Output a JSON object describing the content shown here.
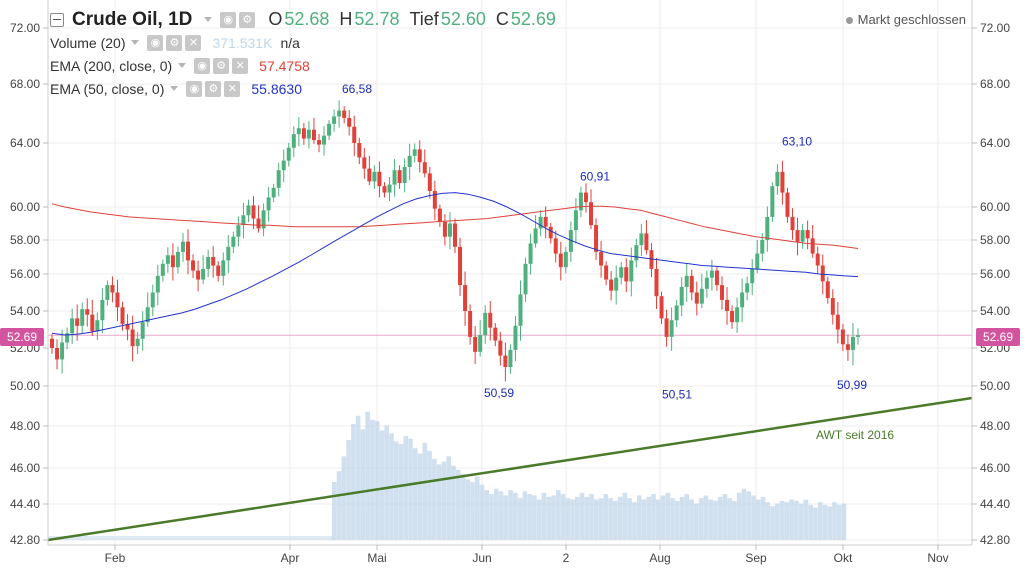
{
  "header": {
    "symbol": "Crude Oil, 1D",
    "ohlc": [
      {
        "key": "O",
        "value": "52.68"
      },
      {
        "key": "H",
        "value": "52.78"
      },
      {
        "key": "Tief",
        "value": "52.60"
      },
      {
        "key": "C",
        "value": "52.69"
      }
    ],
    "market_status": "Markt geschlossen",
    "ohlc_color": "#4fb07e"
  },
  "indicators": [
    {
      "name": "Volume (20)",
      "value": "371.531K",
      "value2": "n/a",
      "color": "#c0d6ea"
    },
    {
      "name": "EMA (200, close, 0)",
      "value": "57.4758",
      "color": "#e0413a"
    },
    {
      "name": "EMA (50, close, 0)",
      "value": "55.8630",
      "color": "#2233cc"
    }
  ],
  "chart_data": {
    "type": "candlestick",
    "y_ticks": [
      "72.00",
      "68.00",
      "64.00",
      "60.00",
      "58.00",
      "56.00",
      "54.00",
      "52.00",
      "50.00",
      "48.00",
      "46.00",
      "44.40",
      "42.80"
    ],
    "x_ticks": [
      "Feb",
      "Apr",
      "Mai",
      "Jun",
      "2",
      "Aug",
      "Sep",
      "Okt",
      "Nov"
    ],
    "last_price": "52.69",
    "last_price_color": "#d2549e",
    "up_color": "#4fb07e",
    "down_color": "#e0413a",
    "annotations": [
      {
        "text": "66,58",
        "value": 66.58
      },
      {
        "text": "50,59",
        "value": 50.59
      },
      {
        "text": "60,91",
        "value": 60.91
      },
      {
        "text": "50,51",
        "value": 50.51
      },
      {
        "text": "63,10",
        "value": 63.1
      },
      {
        "text": "50,99",
        "value": 50.99
      }
    ],
    "trendline_label": "AWT seit 2016",
    "trendline_color": "#4a7a2a",
    "candles_close": [
      52.0,
      51.4,
      52.3,
      52.8,
      53.6,
      53.2,
      54.1,
      53.8,
      52.9,
      53.5,
      54.6,
      55.4,
      55.0,
      54.2,
      53.3,
      53.0,
      52.1,
      52.5,
      53.4,
      54.2,
      55.0,
      55.9,
      56.6,
      57.1,
      56.4,
      57.3,
      57.9,
      56.8,
      56.2,
      55.7,
      56.3,
      57.0,
      56.5,
      55.9,
      56.8,
      57.6,
      58.2,
      58.9,
      59.5,
      60.1,
      59.3,
      58.7,
      59.8,
      60.6,
      61.2,
      62.3,
      62.9,
      63.7,
      64.6,
      65.0,
      64.3,
      64.9,
      64.2,
      63.9,
      64.5,
      65.3,
      65.8,
      66.2,
      65.7,
      65.1,
      64.0,
      63.1,
      62.4,
      61.6,
      62.2,
      61.3,
      60.9,
      61.4,
      62.3,
      61.5,
      62.5,
      63.2,
      63.6,
      62.8,
      62.1,
      61.0,
      59.9,
      59.1,
      58.2,
      59.0,
      57.6,
      55.4,
      54.0,
      52.6,
      51.8,
      52.7,
      53.9,
      53.1,
      52.4,
      51.6,
      51.0,
      51.9,
      53.2,
      54.9,
      56.6,
      57.8,
      58.7,
      59.4,
      58.8,
      58.1,
      57.2,
      56.4,
      57.3,
      58.6,
      59.8,
      60.9,
      60.3,
      58.9,
      57.3,
      56.5,
      55.7,
      55.1,
      55.8,
      56.4,
      55.6,
      56.8,
      57.7,
      58.4,
      57.4,
      56.3,
      54.8,
      53.6,
      52.6,
      53.5,
      54.3,
      55.3,
      55.9,
      55.0,
      54.4,
      55.2,
      55.8,
      56.2,
      55.4,
      54.6,
      54.0,
      53.4,
      54.2,
      55.0,
      55.5,
      56.3,
      57.2,
      58.0,
      59.4,
      61.3,
      62.2,
      60.9,
      59.4,
      58.6,
      57.9,
      58.6,
      58.1,
      57.2,
      56.5,
      55.6,
      54.7,
      53.8,
      53.0,
      52.2,
      51.9,
      52.6,
      52.69
    ],
    "volume": [
      null,
      null,
      null,
      null,
      null,
      null,
      null,
      null,
      null,
      null,
      null,
      null,
      null,
      null,
      null,
      null,
      null,
      null,
      null,
      null,
      null,
      null,
      null,
      null,
      null,
      null,
      null,
      null,
      null,
      null,
      null,
      null,
      null,
      null,
      null,
      null,
      null,
      null,
      null,
      null,
      null,
      null,
      null,
      null,
      null,
      null,
      null,
      null,
      null,
      null,
      null,
      null,
      0.43,
      0.51,
      0.62,
      0.74,
      0.86,
      0.92,
      0.82,
      0.95,
      0.89,
      0.88,
      0.81,
      0.85,
      0.79,
      0.73,
      0.71,
      0.77,
      0.75,
      0.68,
      0.64,
      0.72,
      0.66,
      0.6,
      0.56,
      0.58,
      0.62,
      0.55,
      0.52,
      0.49,
      0.45,
      0.43,
      0.47,
      0.41,
      0.37,
      0.34,
      0.38,
      0.36,
      0.33,
      0.37,
      0.35,
      0.31,
      0.36,
      0.34,
      0.33,
      0.3,
      0.35,
      0.32,
      0.33,
      0.37,
      0.34,
      0.31,
      0.3,
      0.32,
      0.35,
      0.32,
      0.34,
      0.3,
      0.31,
      0.34,
      0.31,
      0.29,
      0.32,
      0.35,
      0.31,
      0.28,
      0.33,
      0.3,
      0.32,
      0.34,
      0.3,
      0.33,
      0.35,
      0.31,
      0.29,
      0.32,
      0.34,
      0.3,
      0.27,
      0.31,
      0.33,
      0.3,
      0.29,
      0.32,
      0.34,
      0.31,
      0.29,
      0.35,
      0.38,
      0.36,
      0.33,
      0.3,
      0.32,
      0.28,
      0.25,
      0.27,
      0.29,
      0.28,
      0.3,
      0.29,
      0.27,
      0.3,
      0.26,
      0.24,
      0.28,
      0.26,
      0.25,
      0.28,
      0.26,
      0.27
    ],
    "ema200": [
      60.2,
      60.0,
      59.85,
      59.7,
      59.6,
      59.5,
      59.4,
      59.35,
      59.3,
      59.25,
      59.2,
      59.15,
      59.1,
      59.05,
      59.0,
      58.95,
      58.9,
      58.9,
      58.85,
      58.8,
      58.8,
      58.8,
      58.8,
      58.8,
      58.8,
      58.85,
      58.9,
      58.95,
      59.0,
      59.05,
      59.1,
      59.15,
      59.2,
      59.25,
      59.3,
      59.4,
      59.5,
      59.6,
      59.7,
      59.8,
      59.9,
      60.0,
      60.05,
      60.05,
      60.0,
      59.9,
      59.8,
      59.6,
      59.4,
      59.2,
      59.0,
      58.8,
      58.65,
      58.5,
      58.35,
      58.2,
      58.1,
      58.0,
      57.9,
      57.8,
      57.75,
      57.7,
      57.6,
      57.5
    ],
    "ema50": [
      52.8,
      52.7,
      52.75,
      52.85,
      53.0,
      53.15,
      53.3,
      53.45,
      53.6,
      53.75,
      53.9,
      54.1,
      54.35,
      54.6,
      54.9,
      55.2,
      55.55,
      55.9,
      56.3,
      56.7,
      57.15,
      57.6,
      58.05,
      58.5,
      58.95,
      59.4,
      59.8,
      60.2,
      60.5,
      60.7,
      60.85,
      60.9,
      60.8,
      60.6,
      60.35,
      60.0,
      59.6,
      59.15,
      58.7,
      58.3,
      57.95,
      57.65,
      57.4,
      57.2,
      57.1,
      57.0,
      56.9,
      56.8,
      56.7,
      56.6,
      56.5,
      56.45,
      56.4,
      56.35,
      56.3,
      56.25,
      56.2,
      56.15,
      56.1,
      56.0,
      55.95,
      55.9,
      55.86
    ]
  }
}
